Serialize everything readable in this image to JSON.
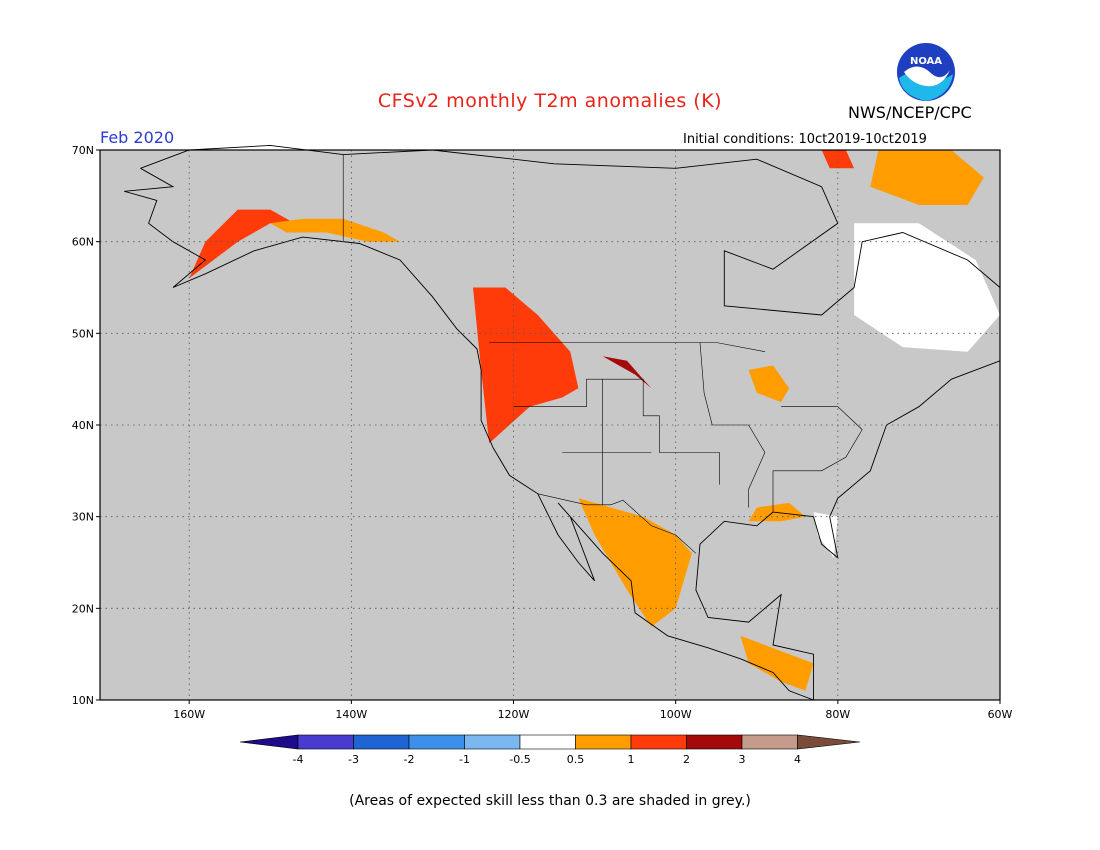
{
  "header": {
    "title": "CFSv2 monthly T2m anomalies (K)",
    "agency": "NWS/NCEP/CPC",
    "logo_label": "NOAA",
    "month": "Feb 2020",
    "initial_conditions": "Initial conditions: 10ct2019-10ct2019"
  },
  "map": {
    "lat_labels": [
      "70N",
      "60N",
      "50N",
      "40N",
      "30N",
      "20N",
      "10N"
    ],
    "lat_values": [
      70,
      60,
      50,
      40,
      30,
      20,
      10
    ],
    "lon_labels": [
      "160W",
      "140W",
      "120W",
      "100W",
      "80W",
      "60W"
    ],
    "lon_values": [
      -160,
      -140,
      -120,
      -100,
      -80,
      -60
    ],
    "extent": {
      "lon_min": -171,
      "lon_max": -60,
      "lat_min": 10,
      "lat_max": 70
    },
    "background_color": "#c8c8c8"
  },
  "colorbar": {
    "ticks": [
      "-4",
      "-3",
      "-2",
      "-1",
      "-0.5",
      "0.5",
      "1",
      "2",
      "3",
      "4"
    ],
    "colors": [
      "#1d0d8a",
      "#4a3bd0",
      "#1e64d2",
      "#3c90ea",
      "#7bb8f2",
      "#ffffff",
      "#ff9d00",
      "#ff3b0a",
      "#a50a0a",
      "#c59b8c",
      "#7a4a3a"
    ]
  },
  "footnote": "(Areas of expected skill less than 0.3 are shaded in grey.)",
  "anomaly_regions": [
    {
      "name": "alaska-southwest",
      "category": "1",
      "color": "#ff3b0a",
      "lon": [
        -160,
        -157,
        -154,
        -150,
        -147,
        -150,
        -154,
        -158
      ],
      "lat": [
        56,
        58,
        60,
        62,
        62,
        63.5,
        63.5,
        60
      ]
    },
    {
      "name": "alaska-interior",
      "category": "0.5",
      "color": "#ff9d00",
      "lon": [
        -150,
        -146,
        -141,
        -136,
        -134,
        -138,
        -143,
        -148
      ],
      "lat": [
        62,
        62.5,
        62.5,
        61,
        60,
        60,
        61,
        61
      ]
    },
    {
      "name": "pacific-northwest",
      "category": "1",
      "color": "#ff3b0a",
      "lon": [
        -125,
        -121,
        -117,
        -113,
        -112,
        -114,
        -118,
        -123,
        -124
      ],
      "lat": [
        55,
        55,
        52,
        48,
        44,
        43,
        42,
        38,
        46
      ]
    },
    {
      "name": "northern-plains",
      "category": "2",
      "color": "#a50a0a",
      "lon": [
        -109,
        -106,
        -104,
        -103,
        -105
      ],
      "lat": [
        47.5,
        47,
        45,
        44,
        45.5
      ]
    },
    {
      "name": "mexico-northwest",
      "category": "0.5",
      "color": "#ff9d00",
      "lon": [
        -112,
        -108,
        -104,
        -100,
        -98,
        -100,
        -103,
        -106,
        -110
      ],
      "lat": [
        32,
        31,
        30,
        28,
        26,
        20,
        18,
        22,
        28
      ]
    },
    {
      "name": "gulf-coast",
      "category": "0.5",
      "color": "#ff9d00",
      "lon": [
        -90,
        -86,
        -84,
        -87,
        -91
      ],
      "lat": [
        31,
        31.5,
        30,
        29.5,
        29.5
      ]
    },
    {
      "name": "florida",
      "category": "-0.5",
      "color": "#ffffff",
      "lon": [
        -83,
        -80,
        -80.5,
        -82.5
      ],
      "lat": [
        30.5,
        30,
        25.5,
        28
      ]
    },
    {
      "name": "central-america",
      "category": "0.5",
      "color": "#ff9d00",
      "lon": [
        -92,
        -89,
        -86,
        -83,
        -84,
        -87,
        -91
      ],
      "lat": [
        17,
        16,
        15,
        14,
        11,
        12,
        14
      ]
    },
    {
      "name": "great-lakes",
      "category": "0.5",
      "color": "#ff9d00",
      "lon": [
        -91,
        -88,
        -86,
        -87,
        -90
      ],
      "lat": [
        46,
        46.5,
        44,
        42.5,
        43.5
      ]
    },
    {
      "name": "quebec-labrador",
      "category": "-0.5",
      "color": "#ffffff",
      "lon": [
        -78,
        -70,
        -63,
        -60,
        -64,
        -72,
        -78
      ],
      "lat": [
        62,
        62,
        58,
        52,
        48,
        48.5,
        52
      ]
    },
    {
      "name": "baffin-region",
      "category": "0.5",
      "color": "#ff9d00",
      "lon": [
        -75,
        -66,
        -62,
        -64,
        -70,
        -76
      ],
      "lat": [
        70,
        70,
        67,
        64,
        64,
        66
      ]
    },
    {
      "name": "greenland-tip",
      "category": "1",
      "color": "#ff3b0a",
      "lon": [
        -82,
        -79,
        -78,
        -81
      ],
      "lat": [
        70,
        70,
        68,
        68
      ]
    }
  ]
}
